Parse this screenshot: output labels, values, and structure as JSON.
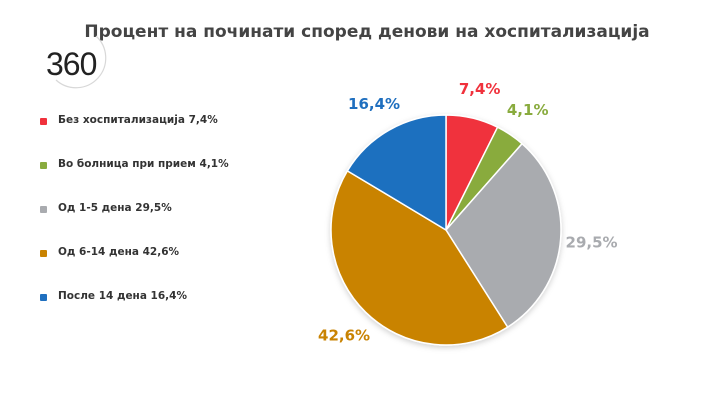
{
  "title": "Процент на починати според денови на хоспитализација",
  "logo": {
    "text": "360"
  },
  "chart_data": {
    "type": "pie",
    "title": "Процент на починати според денови на хоспитализација",
    "start_position": "top",
    "legend_position": "left",
    "slices": [
      {
        "label": "Без хоспитализација 7,4%",
        "value": 7.4,
        "display": "7,4%",
        "color": "#f0313c"
      },
      {
        "label": "Во болница при прием 4,1%",
        "value": 4.1,
        "display": "4,1%",
        "color": "#89ab3e"
      },
      {
        "label": "Од 1-5 дена 29,5%",
        "value": 29.5,
        "display": "29,5%",
        "color": "#a9abaf"
      },
      {
        "label": "Од 6-14 дена 42,6%",
        "value": 42.6,
        "display": "42,6%",
        "color": "#c98302"
      },
      {
        "label": "После 14 дена 16,4%",
        "value": 16.4,
        "display": "16,4%",
        "color": "#1f6fbf"
      }
    ]
  }
}
